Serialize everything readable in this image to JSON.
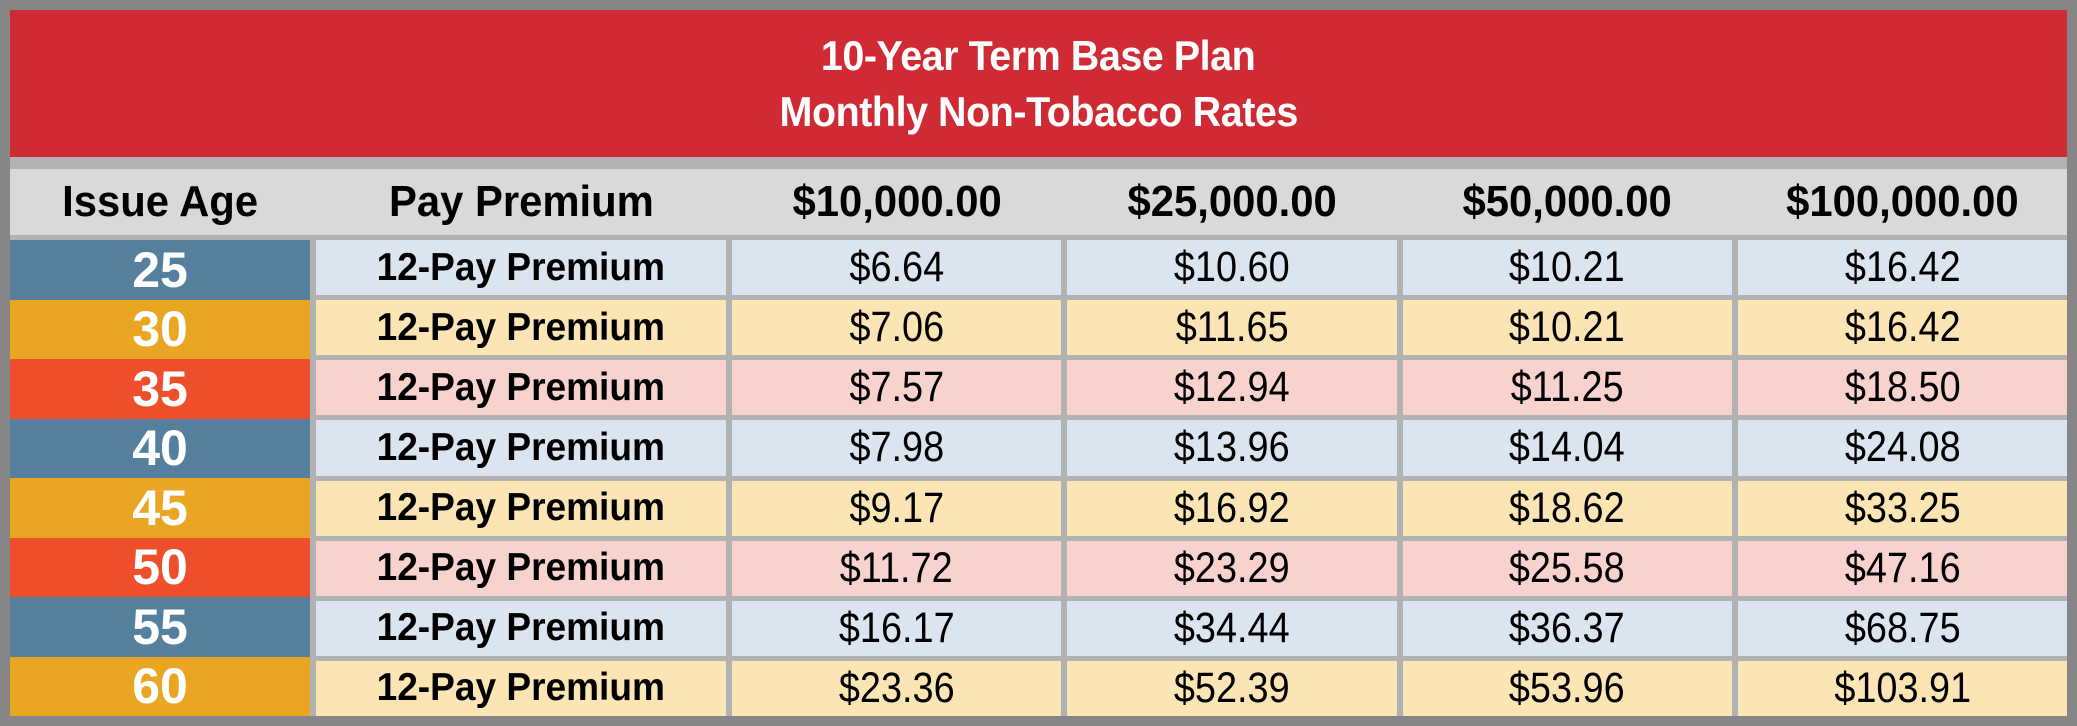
{
  "title": {
    "line1": "10-Year Term Base Plan",
    "line2": "Monthly Non-Tobacco Rates"
  },
  "columns": [
    "Issue Age",
    "Pay Premium",
    "$10,000.00",
    "$25,000.00",
    "$50,000.00",
    "$100,000.00"
  ],
  "rows": [
    {
      "age": "25",
      "premium_label": "12-Pay Premium",
      "theme": "blue",
      "values": [
        "$6.64",
        "$10.60",
        "$10.21",
        "$16.42"
      ]
    },
    {
      "age": "30",
      "premium_label": "12-Pay Premium",
      "theme": "gold",
      "values": [
        "$7.06",
        "$11.65",
        "$10.21",
        "$16.42"
      ]
    },
    {
      "age": "35",
      "premium_label": "12-Pay Premium",
      "theme": "red",
      "values": [
        "$7.57",
        "$12.94",
        "$11.25",
        "$18.50"
      ]
    },
    {
      "age": "40",
      "premium_label": "12-Pay Premium",
      "theme": "blue",
      "values": [
        "$7.98",
        "$13.96",
        "$14.04",
        "$24.08"
      ]
    },
    {
      "age": "45",
      "premium_label": "12-Pay Premium",
      "theme": "gold",
      "values": [
        "$9.17",
        "$16.92",
        "$18.62",
        "$33.25"
      ]
    },
    {
      "age": "50",
      "premium_label": "12-Pay Premium",
      "theme": "red",
      "values": [
        "$11.72",
        "$23.29",
        "$25.58",
        "$47.16"
      ]
    },
    {
      "age": "55",
      "premium_label": "12-Pay Premium",
      "theme": "blue",
      "values": [
        "$16.17",
        "$34.44",
        "$36.37",
        "$68.75"
      ]
    },
    {
      "age": "60",
      "premium_label": "12-Pay Premium",
      "theme": "gold",
      "values": [
        "$23.36",
        "$52.39",
        "$53.96",
        "$103.91"
      ]
    }
  ],
  "themes": {
    "blue": {
      "age_bg": "#54809E",
      "row_bg": "#DAE5EF"
    },
    "gold": {
      "age_bg": "#E9A623",
      "row_bg": "#FBE5B4"
    },
    "red": {
      "age_bg": "#EF4E2B",
      "row_bg": "#F8D3CE"
    }
  },
  "colors": {
    "banner-bg": "#D02B35",
    "banner-text": "#FFFFFF",
    "header-bg": "#D9D9D9",
    "header-text": "#000000",
    "frame": "#868686",
    "gridline": "#B2B2B2",
    "age-text": "#FFFFFF",
    "cell-text": "#000000"
  },
  "chart_data": {
    "type": "table",
    "title": "10-Year Term Base Plan Monthly Non-Tobacco Rates",
    "columns": [
      "Issue Age",
      "Pay Premium",
      "$10,000.00",
      "$25,000.00",
      "$50,000.00",
      "$100,000.00"
    ],
    "rows": [
      [
        "25",
        "12-Pay Premium",
        6.64,
        10.6,
        10.21,
        16.42
      ],
      [
        "30",
        "12-Pay Premium",
        7.06,
        11.65,
        10.21,
        16.42
      ],
      [
        "35",
        "12-Pay Premium",
        7.57,
        12.94,
        11.25,
        18.5
      ],
      [
        "40",
        "12-Pay Premium",
        7.98,
        13.96,
        14.04,
        24.08
      ],
      [
        "45",
        "12-Pay Premium",
        9.17,
        16.92,
        18.62,
        33.25
      ],
      [
        "50",
        "12-Pay Premium",
        11.72,
        23.29,
        25.58,
        47.16
      ],
      [
        "55",
        "12-Pay Premium",
        16.17,
        34.44,
        36.37,
        68.75
      ],
      [
        "60",
        "12-Pay Premium",
        23.36,
        52.39,
        53.96,
        103.91
      ]
    ]
  }
}
